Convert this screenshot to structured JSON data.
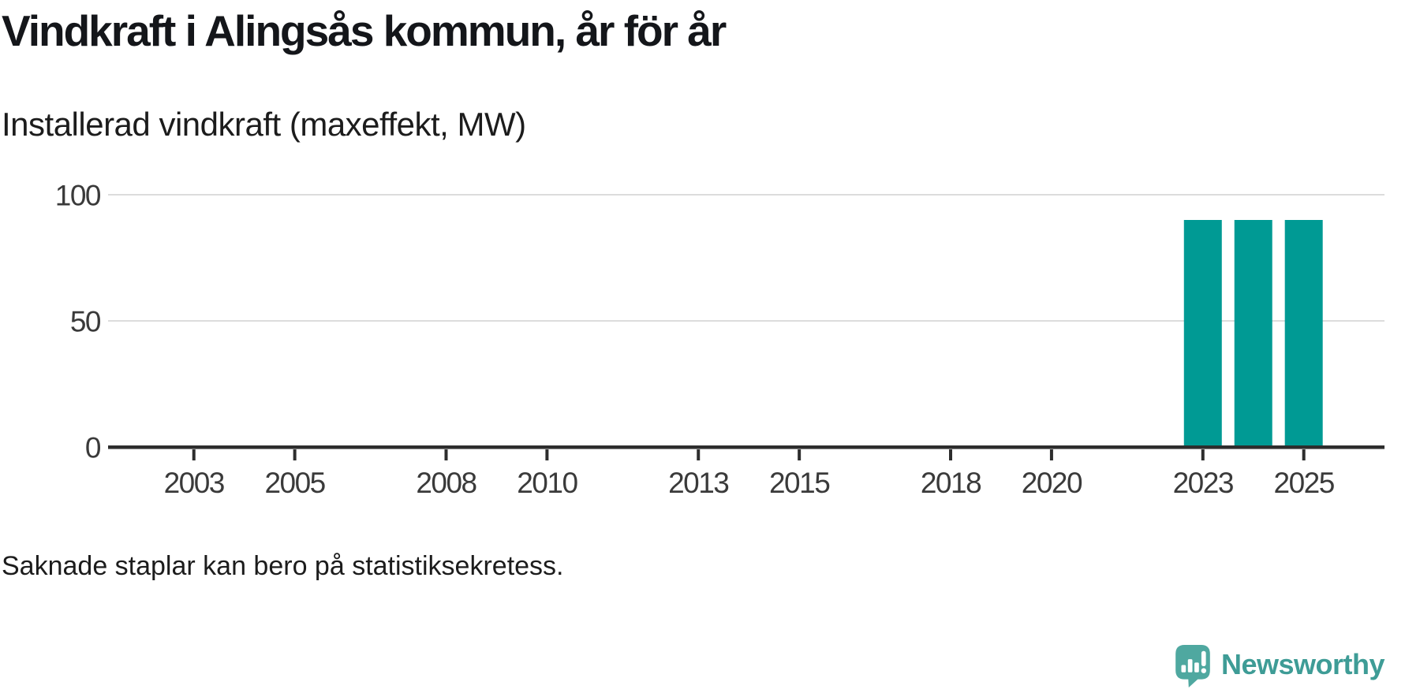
{
  "header": {
    "title": "Vindkraft i Alingsås kommun, år för år",
    "subtitle": "Installerad vindkraft (maxeffekt, MW)"
  },
  "footnote": "Saknade staplar kan bero på statistiksekretess.",
  "branding": {
    "name": "Newsworthy",
    "icon": "speech-bubble-with-bar-chart-and-exclamation",
    "icon_color": "#4FA8A0",
    "text_color": "#3E9C96"
  },
  "chart_data": {
    "type": "bar",
    "title": "Vindkraft i Alingsås kommun, år för år",
    "ylabel": "Installerad vindkraft (maxeffekt, MW)",
    "x": [
      2023,
      2024,
      2025
    ],
    "values": [
      90,
      90,
      90
    ],
    "x_ticks": [
      2003,
      2005,
      2008,
      2010,
      2013,
      2015,
      2018,
      2020,
      2023,
      2025
    ],
    "y_ticks": [
      0,
      50,
      100
    ],
    "xlim": [
      2001.3,
      2026.6
    ],
    "ylim": [
      0,
      100
    ],
    "grid": "horizontal-y",
    "legend": "none",
    "bar_color": "#009A94",
    "grid_color": "#dcdcdc",
    "axis_color": "#2d2d2d",
    "tick_label_color": "#3a3a3a"
  }
}
